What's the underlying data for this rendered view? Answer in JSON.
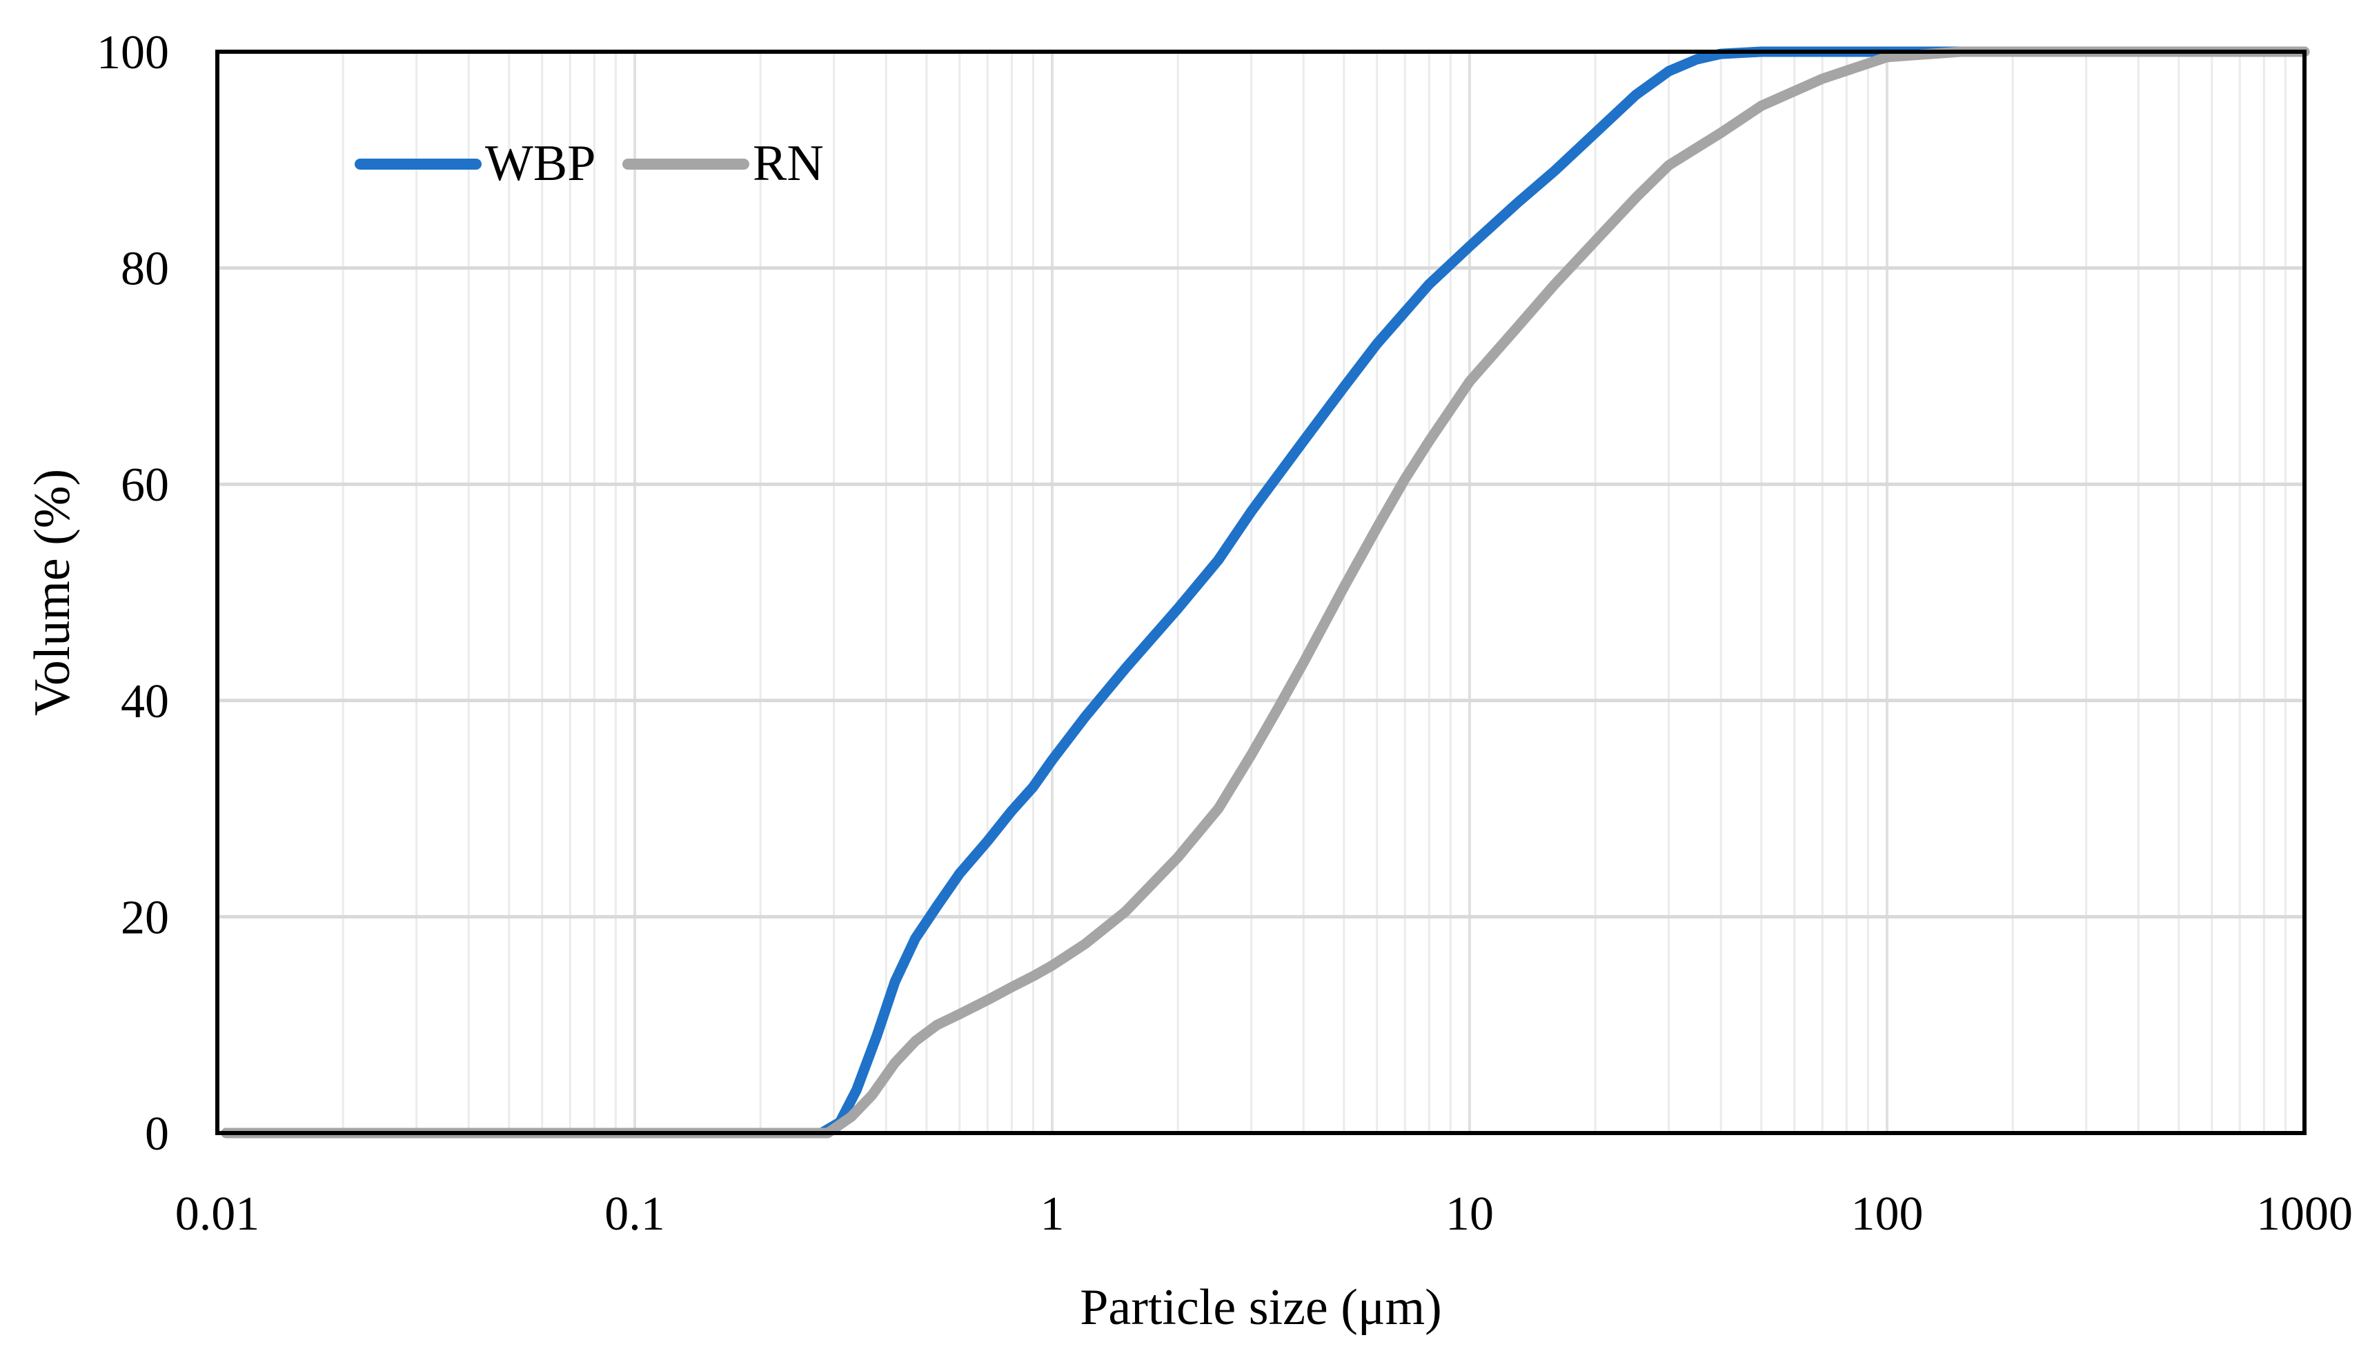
{
  "chart_data": {
    "type": "line",
    "title": "",
    "xlabel": "Particle size (μm)",
    "ylabel": "Volume (%)",
    "xscale": "log",
    "xlim": [
      0.01,
      1000
    ],
    "ylim": [
      0,
      100
    ],
    "xticks": [
      0.01,
      0.1,
      1,
      10,
      100,
      1000
    ],
    "xtick_labels": [
      "0.01",
      "0.1",
      "1",
      "10",
      "100",
      "1000"
    ],
    "yticks": [
      0,
      20,
      40,
      60,
      80,
      100
    ],
    "ytick_labels": [
      "0",
      "20",
      "40",
      "60",
      "80",
      "100"
    ],
    "grid": true,
    "legend_position": "top-left",
    "series": [
      {
        "name": "WBP",
        "color": "#1F72C8",
        "x": [
          0.0105,
          0.05,
          0.1,
          0.2,
          0.28,
          0.31,
          0.34,
          0.38,
          0.42,
          0.47,
          0.53,
          0.6,
          0.7,
          0.8,
          0.9,
          1.0,
          1.2,
          1.5,
          2.0,
          2.5,
          3.0,
          4.0,
          5.0,
          6.0,
          8.0,
          10,
          13,
          16,
          20,
          25,
          30,
          35,
          40,
          50,
          70,
          100,
          200,
          500,
          1000
        ],
        "y": [
          0,
          0,
          0,
          0,
          0,
          1,
          4,
          9,
          14,
          18,
          21,
          24,
          27,
          29.8,
          32,
          34.5,
          38.5,
          43,
          48.5,
          53,
          57.5,
          64,
          69,
          73,
          78.5,
          82,
          86,
          89,
          92.5,
          96,
          98.2,
          99.3,
          99.8,
          100,
          100,
          100,
          100,
          100,
          100
        ]
      },
      {
        "name": "RN",
        "color": "#A5A5A5",
        "x": [
          0.0105,
          0.05,
          0.1,
          0.2,
          0.29,
          0.33,
          0.37,
          0.42,
          0.47,
          0.53,
          0.6,
          0.7,
          0.8,
          0.9,
          1.0,
          1.2,
          1.5,
          2.0,
          2.5,
          3.0,
          3.5,
          4.0,
          5.0,
          6.0,
          7.0,
          8.0,
          10,
          13,
          16,
          20,
          25,
          30,
          40,
          50,
          70,
          100,
          150,
          200,
          500,
          1000
        ],
        "y": [
          0,
          0,
          0,
          0,
          0,
          1.5,
          3.5,
          6.5,
          8.5,
          10,
          11,
          12.3,
          13.5,
          14.5,
          15.5,
          17.5,
          20.5,
          25.5,
          30,
          35,
          39.5,
          43.5,
          50.5,
          56,
          60.5,
          64,
          69.5,
          74.5,
          78.5,
          82.5,
          86.5,
          89.5,
          92.5,
          95,
          97.5,
          99.5,
          100,
          100,
          100,
          100
        ]
      }
    ]
  }
}
